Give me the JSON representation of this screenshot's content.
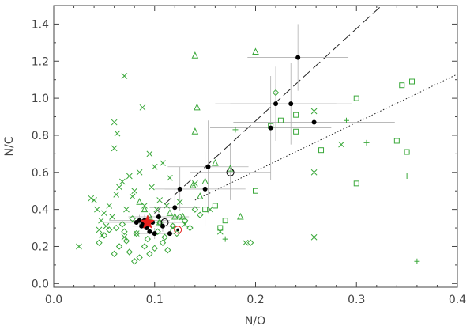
{
  "chart_data": {
    "type": "scatter",
    "title": "",
    "xlabel": "N/O",
    "ylabel": "N/C",
    "xlim": [
      0.0,
      0.4
    ],
    "ylim": [
      -0.02,
      1.5
    ],
    "xticks": [
      0.0,
      0.1,
      0.2,
      0.3,
      0.4
    ],
    "xtick_labels": [
      "0.0",
      "0.1",
      "0.2",
      "0.3",
      "0.4"
    ],
    "yticks": [
      0.0,
      0.2,
      0.4,
      0.6,
      0.8,
      1.0,
      1.2,
      1.4
    ],
    "ytick_labels": [
      "0.0",
      "0.2",
      "0.4",
      "0.6",
      "0.8",
      "1.0",
      "1.2",
      "1.4"
    ],
    "grid": false,
    "colors": {
      "green": "#3aa83a",
      "black": "#000000",
      "gray": "#9a9a9a",
      "star": "#e8201c"
    },
    "lines": [
      {
        "style": "dashed",
        "x": [
          0.09,
          0.325
        ],
        "y": [
          0.33,
          1.5
        ]
      },
      {
        "style": "dotted",
        "x": [
          0.14,
          0.4
        ],
        "y": [
          0.45,
          1.13
        ]
      }
    ],
    "series": [
      {
        "marker": "x",
        "color": "green",
        "points": [
          [
            0.025,
            0.2
          ],
          [
            0.037,
            0.46
          ],
          [
            0.04,
            0.45
          ],
          [
            0.043,
            0.4
          ],
          [
            0.045,
            0.29
          ],
          [
            0.048,
            0.26
          ],
          [
            0.05,
            0.38
          ],
          [
            0.052,
            0.31
          ],
          [
            0.055,
            0.42
          ],
          [
            0.058,
            0.36
          ],
          [
            0.06,
            0.73
          ],
          [
            0.06,
            0.87
          ],
          [
            0.062,
            0.48
          ],
          [
            0.063,
            0.81
          ],
          [
            0.065,
            0.52
          ],
          [
            0.068,
            0.55
          ],
          [
            0.047,
            0.34
          ],
          [
            0.07,
            0.25
          ],
          [
            0.072,
            0.4
          ],
          [
            0.075,
            0.58
          ],
          [
            0.078,
            0.47
          ],
          [
            0.08,
            0.5
          ],
          [
            0.082,
            0.27
          ],
          [
            0.085,
            0.6
          ],
          [
            0.088,
            0.95
          ],
          [
            0.09,
            0.42
          ],
          [
            0.095,
            0.7
          ],
          [
            0.097,
            0.52
          ],
          [
            0.1,
            0.63
          ],
          [
            0.102,
            0.4
          ],
          [
            0.105,
            0.45
          ],
          [
            0.108,
            0.65
          ],
          [
            0.112,
            0.42
          ],
          [
            0.115,
            0.57
          ],
          [
            0.118,
            0.3
          ],
          [
            0.125,
            0.44
          ],
          [
            0.13,
            0.32
          ],
          [
            0.14,
            0.54
          ],
          [
            0.155,
            0.4
          ],
          [
            0.165,
            0.28
          ],
          [
            0.07,
            1.12
          ],
          [
            0.258,
            0.93
          ],
          [
            0.258,
            0.6
          ],
          [
            0.258,
            0.25
          ],
          [
            0.285,
            0.75
          ],
          [
            0.19,
            0.22
          ]
        ]
      },
      {
        "marker": "triangle",
        "color": "green",
        "points": [
          [
            0.085,
            0.44
          ],
          [
            0.09,
            0.4
          ],
          [
            0.095,
            0.36
          ],
          [
            0.105,
            0.33
          ],
          [
            0.115,
            0.38
          ],
          [
            0.12,
            0.36
          ],
          [
            0.128,
            0.36
          ],
          [
            0.138,
            0.53
          ],
          [
            0.14,
            0.82
          ],
          [
            0.142,
            0.95
          ],
          [
            0.145,
            0.47
          ],
          [
            0.15,
            0.55
          ],
          [
            0.16,
            0.65
          ],
          [
            0.175,
            0.62
          ],
          [
            0.185,
            0.36
          ],
          [
            0.2,
            1.25
          ],
          [
            0.14,
            1.23
          ]
        ]
      },
      {
        "marker": "diamond",
        "color": "green",
        "points": [
          [
            0.045,
            0.22
          ],
          [
            0.05,
            0.26
          ],
          [
            0.055,
            0.29
          ],
          [
            0.06,
            0.16
          ],
          [
            0.062,
            0.3
          ],
          [
            0.065,
            0.2
          ],
          [
            0.068,
            0.32
          ],
          [
            0.07,
            0.28
          ],
          [
            0.072,
            0.23
          ],
          [
            0.075,
            0.17
          ],
          [
            0.078,
            0.35
          ],
          [
            0.08,
            0.12
          ],
          [
            0.082,
            0.27
          ],
          [
            0.085,
            0.14
          ],
          [
            0.09,
            0.2
          ],
          [
            0.093,
            0.24
          ],
          [
            0.095,
            0.16
          ],
          [
            0.1,
            0.19
          ],
          [
            0.103,
            0.28
          ],
          [
            0.105,
            0.33
          ],
          [
            0.108,
            0.22
          ],
          [
            0.11,
            0.25
          ],
          [
            0.113,
            0.18
          ],
          [
            0.118,
            0.31
          ],
          [
            0.122,
            0.27
          ],
          [
            0.125,
            0.36
          ],
          [
            0.13,
            0.34
          ],
          [
            0.135,
            0.3
          ],
          [
            0.14,
            0.4
          ],
          [
            0.145,
            0.37
          ],
          [
            0.22,
            1.03
          ],
          [
            0.195,
            0.22
          ]
        ]
      },
      {
        "marker": "square",
        "color": "green",
        "points": [
          [
            0.15,
            0.4
          ],
          [
            0.16,
            0.42
          ],
          [
            0.165,
            0.3
          ],
          [
            0.17,
            0.34
          ],
          [
            0.2,
            0.5
          ],
          [
            0.215,
            0.85
          ],
          [
            0.225,
            0.88
          ],
          [
            0.24,
            0.82
          ],
          [
            0.24,
            0.91
          ],
          [
            0.265,
            0.72
          ],
          [
            0.3,
            1.0
          ],
          [
            0.3,
            0.54
          ],
          [
            0.345,
            1.07
          ],
          [
            0.35,
            0.71
          ],
          [
            0.355,
            1.09
          ],
          [
            0.34,
            0.77
          ]
        ]
      },
      {
        "marker": "plus",
        "color": "green",
        "points": [
          [
            0.18,
            0.83
          ],
          [
            0.29,
            0.88
          ],
          [
            0.31,
            0.76
          ],
          [
            0.35,
            0.58
          ],
          [
            0.36,
            0.12
          ],
          [
            0.17,
            0.24
          ]
        ]
      },
      {
        "marker": "dot",
        "color": "black",
        "points": [
          [
            0.082,
            0.33
          ],
          [
            0.085,
            0.34
          ],
          [
            0.087,
            0.31
          ],
          [
            0.088,
            0.32
          ],
          [
            0.09,
            0.34
          ],
          [
            0.092,
            0.3
          ],
          [
            0.095,
            0.28
          ],
          [
            0.098,
            0.33
          ],
          [
            0.1,
            0.27
          ],
          [
            0.104,
            0.36
          ],
          [
            0.108,
            0.31
          ],
          [
            0.115,
            0.27
          ],
          [
            0.12,
            0.41
          ],
          [
            0.125,
            0.51
          ],
          [
            0.15,
            0.51
          ],
          [
            0.153,
            0.63
          ],
          [
            0.215,
            0.84
          ],
          [
            0.22,
            0.97
          ],
          [
            0.235,
            0.97
          ],
          [
            0.242,
            1.22
          ],
          [
            0.258,
            0.87
          ]
        ]
      },
      {
        "marker": "circle",
        "color": "black",
        "points": [
          [
            0.09,
            0.33
          ],
          [
            0.11,
            0.33
          ],
          [
            0.175,
            0.6
          ]
        ]
      },
      {
        "marker": "circle",
        "color": "star",
        "points": [
          [
            0.123,
            0.29
          ]
        ]
      },
      {
        "marker": "star",
        "color": "star",
        "points": [
          [
            0.093,
            0.33
          ]
        ]
      }
    ],
    "error_bars": [
      {
        "x": 0.215,
        "y": 0.84,
        "xerr": 0.06,
        "yerr": 0.28
      },
      {
        "x": 0.22,
        "y": 0.97,
        "xerr": 0.06,
        "yerr": 0.2
      },
      {
        "x": 0.235,
        "y": 0.97,
        "xerr": 0.06,
        "yerr": 0.22
      },
      {
        "x": 0.242,
        "y": 1.22,
        "xerr": 0.05,
        "yerr": 0.18
      },
      {
        "x": 0.258,
        "y": 0.87,
        "xerr": 0.08,
        "yerr": 0.28
      },
      {
        "x": 0.153,
        "y": 0.63,
        "xerr": 0.04,
        "yerr": 0.25
      },
      {
        "x": 0.15,
        "y": 0.51,
        "xerr": 0.04,
        "yerr": 0.2
      },
      {
        "x": 0.175,
        "y": 0.6,
        "xerr": 0.04,
        "yerr": 0.15
      },
      {
        "x": 0.125,
        "y": 0.51,
        "xerr": 0.025,
        "yerr": 0.12
      },
      {
        "x": 0.12,
        "y": 0.41,
        "xerr": 0.025,
        "yerr": 0.1
      },
      {
        "x": 0.104,
        "y": 0.36,
        "xerr": 0.03,
        "yerr": 0.05
      },
      {
        "x": 0.09,
        "y": 0.33,
        "xerr": 0.04,
        "yerr": 0.04
      },
      {
        "x": 0.085,
        "y": 0.34,
        "xerr": 0.03,
        "yerr": 0.03
      },
      {
        "x": 0.108,
        "y": 0.31,
        "xerr": 0.03,
        "yerr": 0.03
      },
      {
        "x": 0.1,
        "y": 0.27,
        "xerr": 0.02,
        "yerr": 0.03
      }
    ]
  }
}
